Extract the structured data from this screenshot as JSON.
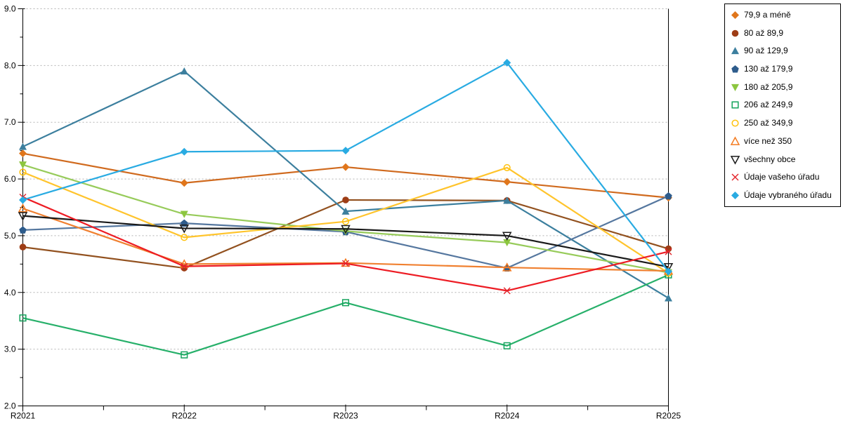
{
  "chart_data": {
    "type": "line",
    "title": "",
    "xlabel": "",
    "ylabel": "",
    "categories": [
      "R2021",
      "R2022",
      "R2023",
      "R2024",
      "R2025"
    ],
    "ylim": [
      2.0,
      9.0
    ],
    "y_ticks": [
      "2.0",
      "3.0",
      "4.0",
      "5.0",
      "6.0",
      "7.0",
      "8.0",
      "9.0"
    ],
    "grid": "horizontal dashed gridlines at each integer value",
    "legend_position": "right-outside",
    "series": [
      {
        "name": "79,9 a méně",
        "marker": "diamond",
        "color": "#E0761B",
        "line_color": "#D06A1E",
        "values": [
          6.45,
          5.93,
          6.21,
          5.95,
          5.67
        ]
      },
      {
        "name": "80 až 89,9",
        "marker": "circle",
        "color": "#9E3D16",
        "line_color": "#92511F",
        "values": [
          4.8,
          4.43,
          5.63,
          5.62,
          4.77
        ]
      },
      {
        "name": "90 až 129,9",
        "marker": "triangle-up",
        "color": "#3C7F9E",
        "line_color": "#3C7F9E",
        "values": [
          6.57,
          7.9,
          5.43,
          5.62,
          3.9
        ]
      },
      {
        "name": "130 až 179,9",
        "marker": "pentagon",
        "color": "#2E5C8C",
        "line_color": "#55779F",
        "values": [
          5.1,
          5.22,
          5.07,
          4.43,
          5.7
        ]
      },
      {
        "name": "180 až 205,9",
        "marker": "triangle-down",
        "color": "#8CC63F",
        "line_color": "#97CB5A",
        "values": [
          6.25,
          5.38,
          5.08,
          4.88,
          4.35
        ]
      },
      {
        "name": "206 až 249,9",
        "marker": "square-open",
        "color": "#14A35C",
        "line_color": "#27B06A",
        "values": [
          3.55,
          2.9,
          3.82,
          3.06,
          4.31
        ]
      },
      {
        "name": "250 až 349,9",
        "marker": "circle-open",
        "color": "#FFC20E",
        "line_color": "#FFC42C",
        "values": [
          6.12,
          4.97,
          5.25,
          6.2,
          4.34
        ]
      },
      {
        "name": "více než 350",
        "marker": "triangle-up-open",
        "color": "#F47B20",
        "line_color": "#F08030",
        "values": [
          5.48,
          4.5,
          4.52,
          4.44,
          4.38
        ]
      },
      {
        "name": "všechny obce",
        "marker": "triangle-down-open",
        "color": "#1A1A1A",
        "line_color": "#1A1A1A",
        "values": [
          5.35,
          5.13,
          5.12,
          5.0,
          4.45
        ]
      },
      {
        "name": "Údaje vašeho úřadu",
        "marker": "x",
        "color": "#E3242B",
        "line_color": "#ED1C24",
        "values": [
          5.68,
          4.46,
          4.51,
          4.03,
          4.72
        ]
      },
      {
        "name": "Údaje vybraného úřadu",
        "marker": "diamond",
        "color": "#29ABE2",
        "line_color": "#29ABE2",
        "values": [
          5.63,
          6.48,
          6.5,
          8.05,
          4.37
        ]
      }
    ]
  }
}
